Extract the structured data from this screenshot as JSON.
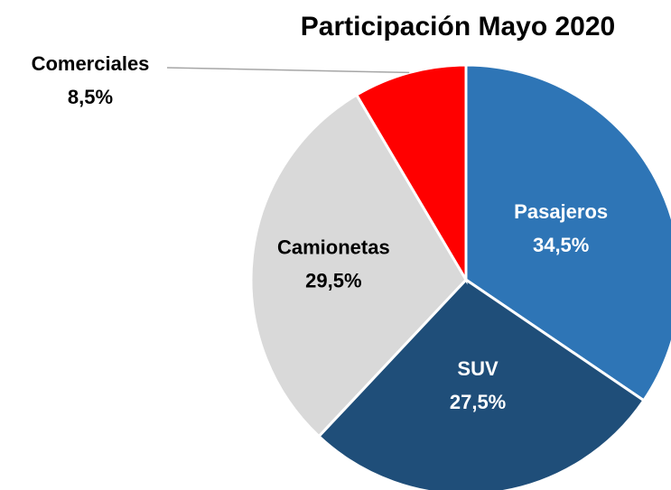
{
  "chart_data": {
    "type": "pie",
    "title": "Participación Mayo 2020",
    "categories": [
      "Pasajeros",
      "SUV",
      "Camionetas",
      "Comerciales"
    ],
    "values": [
      34.5,
      27.5,
      29.5,
      8.5
    ],
    "value_labels": [
      "34,5%",
      "27,5%",
      "29,5%",
      "8,5%"
    ],
    "colors": [
      "#2e75b6",
      "#1f4e79",
      "#d9d9d9",
      "#ff0000"
    ]
  }
}
